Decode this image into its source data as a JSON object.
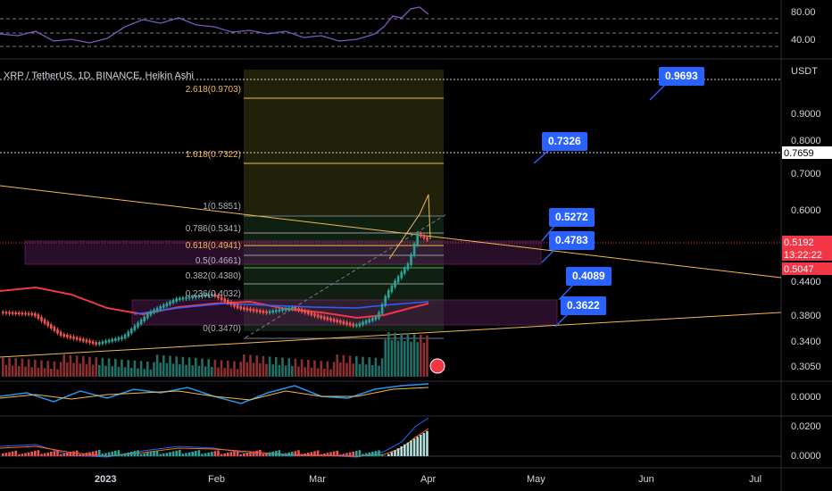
{
  "chart_title": "XRP / TetherUS, 1D, BINANCE, Heikin Ashi",
  "currency": "USDT",
  "rsi_axis": [
    "80.00",
    "40.00"
  ],
  "price_axis": [
    "0.9000",
    "0.8000",
    "0.7000",
    "0.6000",
    "0.4400",
    "0.3800",
    "0.3400",
    "0.3050"
  ],
  "price_badges": {
    "target": "0.7659",
    "last": "0.5192",
    "countdown": "13:22:22",
    "previous": "0.5047"
  },
  "indicator_axis": [
    "0.0000"
  ],
  "macd_axis": [
    "0.0200",
    "0.0000"
  ],
  "fib_levels": [
    "2.618(0.9703)",
    "1.618(0.7322)",
    "1(0.5851)",
    "0.786(0.5341)",
    "0.618(0.4941)",
    "0.5(0.4661)",
    "0.382(0.4380)",
    "0.236(0.4032)",
    "0(0.3470)"
  ],
  "callouts": [
    "0.9693",
    "0.7326",
    "0.5272",
    "0.4783",
    "0.4089",
    "0.3622"
  ],
  "time_axis": [
    "2023",
    "Feb",
    "Mar",
    "Apr",
    "May",
    "Jun",
    "Jul"
  ]
}
